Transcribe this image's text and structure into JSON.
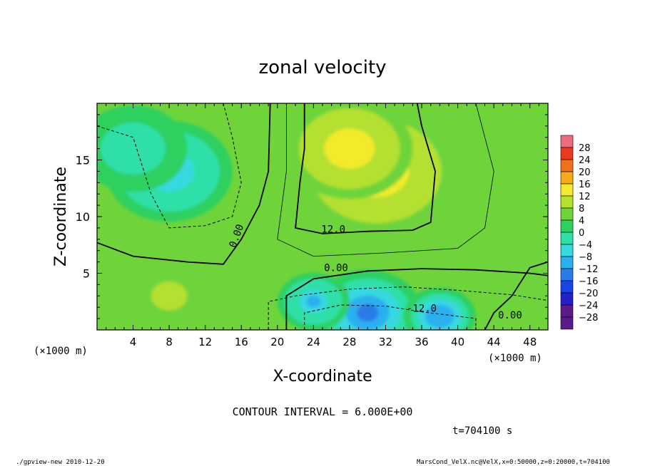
{
  "chart_data": {
    "type": "heatmap",
    "title": "zonal velocity",
    "xlabel": "X-coordinate",
    "ylabel": "Z-coordinate",
    "x_unit_label": "(×1000 m)",
    "xlim": [
      0,
      50
    ],
    "ylim": [
      0,
      20
    ],
    "x_ticks": [
      4,
      8,
      12,
      16,
      20,
      24,
      28,
      32,
      36,
      40,
      44,
      48
    ],
    "y_ticks": [
      5,
      10,
      15
    ],
    "colorbar_levels": [
      28,
      24,
      20,
      16,
      12,
      8,
      4,
      0,
      -4,
      -8,
      -12,
      -16,
      -20,
      -24,
      -28
    ],
    "contour_interval_text": "CONTOUR INTERVAL = 6.000E+00",
    "contour_labels": [
      "0.00",
      "12.0",
      "0.00",
      "-12.0",
      "0.00"
    ],
    "time_text": "t=704100 s",
    "footer_left": "./gpview-new  2010-12-20",
    "footer_right": "MarsCond_VelX.nc@VelX,x=0:50000,z=0:20000,t=704100",
    "field_features": [
      {
        "x": 31,
        "z": 14,
        "value": 17,
        "r": 9
      },
      {
        "x": 28,
        "z": 16,
        "value": 15,
        "r": 7
      },
      {
        "x": 8,
        "z": 14,
        "value": -8,
        "r": 7
      },
      {
        "x": 4,
        "z": 16,
        "value": -4,
        "r": 6
      },
      {
        "x": 30,
        "z": 1.5,
        "value": -15,
        "r": 6
      },
      {
        "x": 38,
        "z": 1.2,
        "value": -12,
        "r": 4
      },
      {
        "x": 24,
        "z": 2.5,
        "value": -9,
        "r": 4
      },
      {
        "x": 8,
        "z": 3,
        "value": 10,
        "r": 5
      },
      {
        "x": 46,
        "z": 5,
        "value": 6,
        "r": 5
      }
    ]
  }
}
